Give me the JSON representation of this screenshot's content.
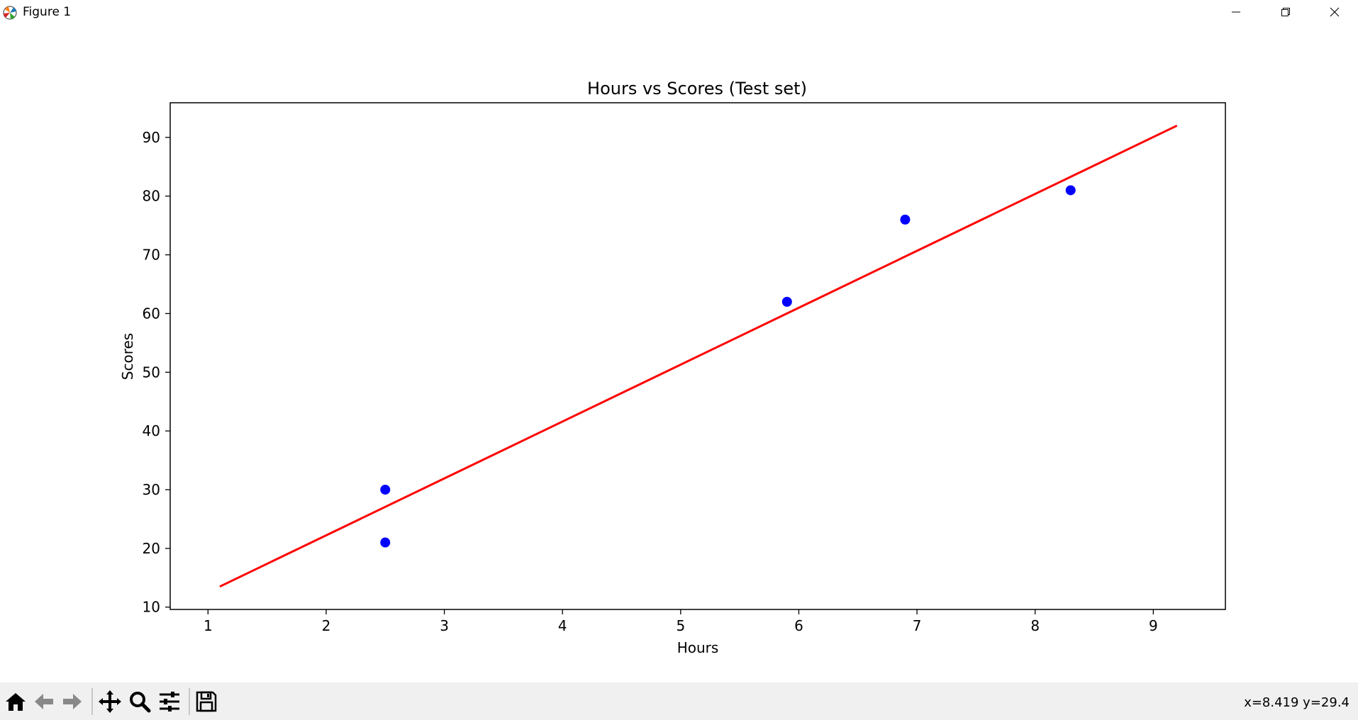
{
  "window": {
    "title": "Figure 1"
  },
  "toolbar": {
    "buttons": [
      "home-icon",
      "back-icon",
      "forward-icon",
      "pan-icon",
      "zoom-icon",
      "configure-subplots-icon",
      "save-icon"
    ],
    "coordinates": "x=8.419 y=29.4"
  },
  "chart_data": {
    "type": "scatter",
    "title": "Hours vs Scores (Test set)",
    "xlabel": "Hours",
    "ylabel": "Scores",
    "xlim": [
      0.68,
      9.61
    ],
    "ylim": [
      9.6,
      95.9
    ],
    "xticks": [
      1,
      2,
      3,
      4,
      5,
      6,
      7,
      8,
      9
    ],
    "yticks": [
      10,
      20,
      30,
      40,
      50,
      60,
      70,
      80,
      90
    ],
    "grid": false,
    "legend": "none",
    "series": [
      {
        "kind": "scatter",
        "color": "#0000ff",
        "points": [
          {
            "x": 2.5,
            "y": 30
          },
          {
            "x": 2.5,
            "y": 21
          },
          {
            "x": 5.9,
            "y": 62
          },
          {
            "x": 6.9,
            "y": 76
          },
          {
            "x": 8.3,
            "y": 81
          }
        ]
      },
      {
        "kind": "line",
        "color": "#ff0000",
        "points": [
          {
            "x": 1.1,
            "y": 13.5
          },
          {
            "x": 9.2,
            "y": 92.0
          }
        ]
      }
    ]
  }
}
